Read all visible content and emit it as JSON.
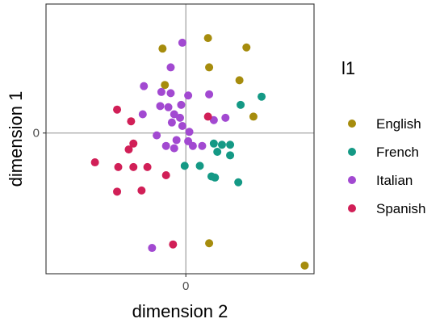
{
  "chart_data": {
    "type": "scatter",
    "xlabel": "dimension 2",
    "ylabel": "dimension 1",
    "xlim": [
      -1.2,
      1.1
    ],
    "ylim": [
      -1.2,
      1.1
    ],
    "x_ticks": [
      0
    ],
    "y_ticks": [
      0
    ],
    "grid": "zero lines only",
    "legend_title": "l1",
    "legend_position": "right",
    "series": [
      {
        "name": "English",
        "color": "#a68c0d",
        "points": [
          {
            "x": -0.2,
            "y": 0.72
          },
          {
            "x": 0.19,
            "y": 0.81
          },
          {
            "x": 0.52,
            "y": 0.73
          },
          {
            "x": 0.2,
            "y": 0.56
          },
          {
            "x": 0.46,
            "y": 0.45
          },
          {
            "x": -0.18,
            "y": 0.41
          },
          {
            "x": 0.58,
            "y": 0.14
          },
          {
            "x": 0.2,
            "y": -0.94
          },
          {
            "x": 1.02,
            "y": -1.13
          }
        ]
      },
      {
        "name": "French",
        "color": "#149985",
        "points": [
          {
            "x": 0.65,
            "y": 0.31
          },
          {
            "x": 0.47,
            "y": 0.24
          },
          {
            "x": 0.24,
            "y": -0.09
          },
          {
            "x": 0.31,
            "y": -0.1
          },
          {
            "x": 0.38,
            "y": -0.1
          },
          {
            "x": 0.27,
            "y": -0.16
          },
          {
            "x": 0.38,
            "y": -0.19
          },
          {
            "x": -0.01,
            "y": -0.28
          },
          {
            "x": 0.12,
            "y": -0.28
          },
          {
            "x": 0.22,
            "y": -0.37
          },
          {
            "x": 0.25,
            "y": -0.38
          },
          {
            "x": 0.45,
            "y": -0.42
          }
        ]
      },
      {
        "name": "Italian",
        "color": "#a249d1",
        "points": [
          {
            "x": -0.03,
            "y": 0.77
          },
          {
            "x": -0.13,
            "y": 0.56
          },
          {
            "x": -0.36,
            "y": 0.4
          },
          {
            "x": -0.21,
            "y": 0.35
          },
          {
            "x": -0.13,
            "y": 0.34
          },
          {
            "x": 0.02,
            "y": 0.32
          },
          {
            "x": 0.2,
            "y": 0.33
          },
          {
            "x": -0.22,
            "y": 0.23
          },
          {
            "x": -0.15,
            "y": 0.22
          },
          {
            "x": -0.04,
            "y": 0.24
          },
          {
            "x": -0.37,
            "y": 0.16
          },
          {
            "x": -0.1,
            "y": 0.16
          },
          {
            "x": -0.05,
            "y": 0.13
          },
          {
            "x": 0.24,
            "y": 0.11
          },
          {
            "x": 0.34,
            "y": 0.13
          },
          {
            "x": -0.12,
            "y": 0.09
          },
          {
            "x": -0.03,
            "y": 0.06
          },
          {
            "x": 0.03,
            "y": 0.01
          },
          {
            "x": -0.25,
            "y": -0.02
          },
          {
            "x": -0.08,
            "y": -0.06
          },
          {
            "x": 0.02,
            "y": -0.07
          },
          {
            "x": -0.17,
            "y": -0.11
          },
          {
            "x": -0.1,
            "y": -0.13
          },
          {
            "x": 0.06,
            "y": -0.11
          },
          {
            "x": 0.14,
            "y": -0.11
          },
          {
            "x": -0.29,
            "y": -0.98
          }
        ]
      },
      {
        "name": "Spanish",
        "color": "#d11f57",
        "points": [
          {
            "x": -0.59,
            "y": 0.2
          },
          {
            "x": -0.47,
            "y": 0.1
          },
          {
            "x": -0.45,
            "y": -0.09
          },
          {
            "x": -0.49,
            "y": -0.14
          },
          {
            "x": 0.19,
            "y": 0.14
          },
          {
            "x": -0.78,
            "y": -0.25
          },
          {
            "x": -0.58,
            "y": -0.29
          },
          {
            "x": -0.45,
            "y": -0.29
          },
          {
            "x": -0.33,
            "y": -0.29
          },
          {
            "x": -0.17,
            "y": -0.36
          },
          {
            "x": -0.59,
            "y": -0.5
          },
          {
            "x": -0.38,
            "y": -0.49
          },
          {
            "x": -0.11,
            "y": -0.95
          }
        ]
      }
    ]
  }
}
